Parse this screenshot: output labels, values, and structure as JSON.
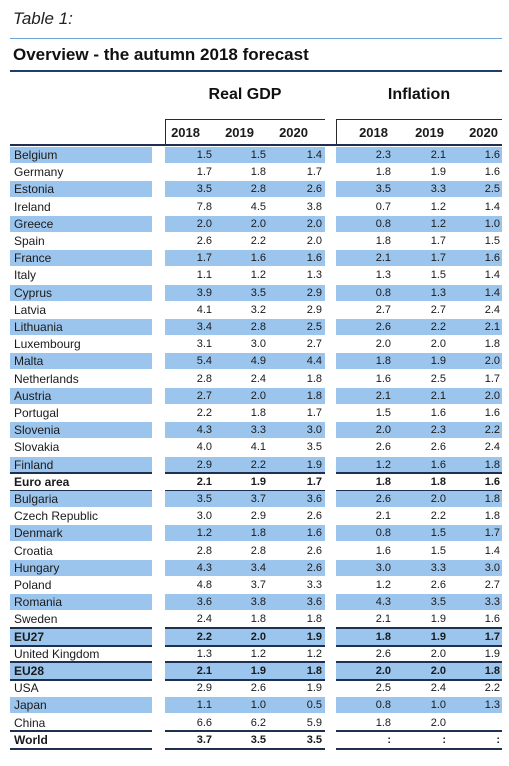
{
  "table": {
    "label": "Table 1:",
    "title": "Overview - the autumn 2018 forecast",
    "groups": [
      "Real GDP",
      "Inflation"
    ],
    "years": [
      "2018",
      "2019",
      "2020"
    ],
    "rows": [
      {
        "name": "Belgium",
        "gdp": [
          "1.5",
          "1.5",
          "1.4"
        ],
        "inf": [
          "2.3",
          "2.1",
          "1.6"
        ],
        "shaded": true,
        "bold": false
      },
      {
        "name": "Germany",
        "gdp": [
          "1.7",
          "1.8",
          "1.7"
        ],
        "inf": [
          "1.8",
          "1.9",
          "1.6"
        ],
        "shaded": false,
        "bold": false
      },
      {
        "name": "Estonia",
        "gdp": [
          "3.5",
          "2.8",
          "2.6"
        ],
        "inf": [
          "3.5",
          "3.3",
          "2.5"
        ],
        "shaded": true,
        "bold": false
      },
      {
        "name": "Ireland",
        "gdp": [
          "7.8",
          "4.5",
          "3.8"
        ],
        "inf": [
          "0.7",
          "1.2",
          "1.4"
        ],
        "shaded": false,
        "bold": false
      },
      {
        "name": "Greece",
        "gdp": [
          "2.0",
          "2.0",
          "2.0"
        ],
        "inf": [
          "0.8",
          "1.2",
          "1.0"
        ],
        "shaded": true,
        "bold": false
      },
      {
        "name": "Spain",
        "gdp": [
          "2.6",
          "2.2",
          "2.0"
        ],
        "inf": [
          "1.8",
          "1.7",
          "1.5"
        ],
        "shaded": false,
        "bold": false
      },
      {
        "name": "France",
        "gdp": [
          "1.7",
          "1.6",
          "1.6"
        ],
        "inf": [
          "2.1",
          "1.7",
          "1.6"
        ],
        "shaded": true,
        "bold": false
      },
      {
        "name": "Italy",
        "gdp": [
          "1.1",
          "1.2",
          "1.3"
        ],
        "inf": [
          "1.3",
          "1.5",
          "1.4"
        ],
        "shaded": false,
        "bold": false
      },
      {
        "name": "Cyprus",
        "gdp": [
          "3.9",
          "3.5",
          "2.9"
        ],
        "inf": [
          "0.8",
          "1.3",
          "1.4"
        ],
        "shaded": true,
        "bold": false
      },
      {
        "name": "Latvia",
        "gdp": [
          "4.1",
          "3.2",
          "2.9"
        ],
        "inf": [
          "2.7",
          "2.7",
          "2.4"
        ],
        "shaded": false,
        "bold": false
      },
      {
        "name": "Lithuania",
        "gdp": [
          "3.4",
          "2.8",
          "2.5"
        ],
        "inf": [
          "2.6",
          "2.2",
          "2.1"
        ],
        "shaded": true,
        "bold": false
      },
      {
        "name": "Luxembourg",
        "gdp": [
          "3.1",
          "3.0",
          "2.7"
        ],
        "inf": [
          "2.0",
          "2.0",
          "1.8"
        ],
        "shaded": false,
        "bold": false
      },
      {
        "name": "Malta",
        "gdp": [
          "5.4",
          "4.9",
          "4.4"
        ],
        "inf": [
          "1.8",
          "1.9",
          "2.0"
        ],
        "shaded": true,
        "bold": false
      },
      {
        "name": "Netherlands",
        "gdp": [
          "2.8",
          "2.4",
          "1.8"
        ],
        "inf": [
          "1.6",
          "2.5",
          "1.7"
        ],
        "shaded": false,
        "bold": false
      },
      {
        "name": "Austria",
        "gdp": [
          "2.7",
          "2.0",
          "1.8"
        ],
        "inf": [
          "2.1",
          "2.1",
          "2.0"
        ],
        "shaded": true,
        "bold": false
      },
      {
        "name": "Portugal",
        "gdp": [
          "2.2",
          "1.8",
          "1.7"
        ],
        "inf": [
          "1.5",
          "1.6",
          "1.6"
        ],
        "shaded": false,
        "bold": false
      },
      {
        "name": "Slovenia",
        "gdp": [
          "4.3",
          "3.3",
          "3.0"
        ],
        "inf": [
          "2.0",
          "2.3",
          "2.2"
        ],
        "shaded": true,
        "bold": false
      },
      {
        "name": "Slovakia",
        "gdp": [
          "4.0",
          "4.1",
          "3.5"
        ],
        "inf": [
          "2.6",
          "2.6",
          "2.4"
        ],
        "shaded": false,
        "bold": false
      },
      {
        "name": "Finland",
        "gdp": [
          "2.9",
          "2.2",
          "1.9"
        ],
        "inf": [
          "1.2",
          "1.6",
          "1.8"
        ],
        "shaded": true,
        "bold": false
      },
      {
        "name": "Euro area",
        "gdp": [
          "2.1",
          "1.9",
          "1.7"
        ],
        "inf": [
          "1.8",
          "1.8",
          "1.6"
        ],
        "shaded": false,
        "bold": true
      },
      {
        "name": "Bulgaria",
        "gdp": [
          "3.5",
          "3.7",
          "3.6"
        ],
        "inf": [
          "2.6",
          "2.0",
          "1.8"
        ],
        "shaded": true,
        "bold": false
      },
      {
        "name": "Czech Republic",
        "gdp": [
          "3.0",
          "2.9",
          "2.6"
        ],
        "inf": [
          "2.1",
          "2.2",
          "1.8"
        ],
        "shaded": false,
        "bold": false
      },
      {
        "name": "Denmark",
        "gdp": [
          "1.2",
          "1.8",
          "1.6"
        ],
        "inf": [
          "0.8",
          "1.5",
          "1.7"
        ],
        "shaded": true,
        "bold": false
      },
      {
        "name": "Croatia",
        "gdp": [
          "2.8",
          "2.8",
          "2.6"
        ],
        "inf": [
          "1.6",
          "1.5",
          "1.4"
        ],
        "shaded": false,
        "bold": false
      },
      {
        "name": "Hungary",
        "gdp": [
          "4.3",
          "3.4",
          "2.6"
        ],
        "inf": [
          "3.0",
          "3.3",
          "3.0"
        ],
        "shaded": true,
        "bold": false
      },
      {
        "name": "Poland",
        "gdp": [
          "4.8",
          "3.7",
          "3.3"
        ],
        "inf": [
          "1.2",
          "2.6",
          "2.7"
        ],
        "shaded": false,
        "bold": false
      },
      {
        "name": "Romania",
        "gdp": [
          "3.6",
          "3.8",
          "3.6"
        ],
        "inf": [
          "4.3",
          "3.5",
          "3.3"
        ],
        "shaded": true,
        "bold": false
      },
      {
        "name": "Sweden",
        "gdp": [
          "2.4",
          "1.8",
          "1.8"
        ],
        "inf": [
          "2.1",
          "1.9",
          "1.6"
        ],
        "shaded": false,
        "bold": false
      },
      {
        "name": "EU27",
        "gdp": [
          "2.2",
          "2.0",
          "1.9"
        ],
        "inf": [
          "1.8",
          "1.9",
          "1.7"
        ],
        "shaded": true,
        "bold": true
      },
      {
        "name": "United Kingdom",
        "gdp": [
          "1.3",
          "1.2",
          "1.2"
        ],
        "inf": [
          "2.6",
          "2.0",
          "1.9"
        ],
        "shaded": false,
        "bold": false
      },
      {
        "name": "EU28",
        "gdp": [
          "2.1",
          "1.9",
          "1.8"
        ],
        "inf": [
          "2.0",
          "2.0",
          "1.8"
        ],
        "shaded": true,
        "bold": true
      },
      {
        "name": "USA",
        "gdp": [
          "2.9",
          "2.6",
          "1.9"
        ],
        "inf": [
          "2.5",
          "2.4",
          "2.2"
        ],
        "shaded": false,
        "bold": false
      },
      {
        "name": "Japan",
        "gdp": [
          "1.1",
          "1.0",
          "0.5"
        ],
        "inf": [
          "0.8",
          "1.0",
          "1.3"
        ],
        "shaded": true,
        "bold": false
      },
      {
        "name": "China",
        "gdp": [
          "6.6",
          "6.2",
          "5.9"
        ],
        "inf": [
          "1.8",
          "2.0",
          ""
        ],
        "shaded": false,
        "bold": false
      },
      {
        "name": "World",
        "gdp": [
          "3.7",
          "3.5",
          "3.5"
        ],
        "inf": [
          ":",
          ":",
          ":"
        ],
        "shaded": false,
        "bold": true
      }
    ]
  }
}
